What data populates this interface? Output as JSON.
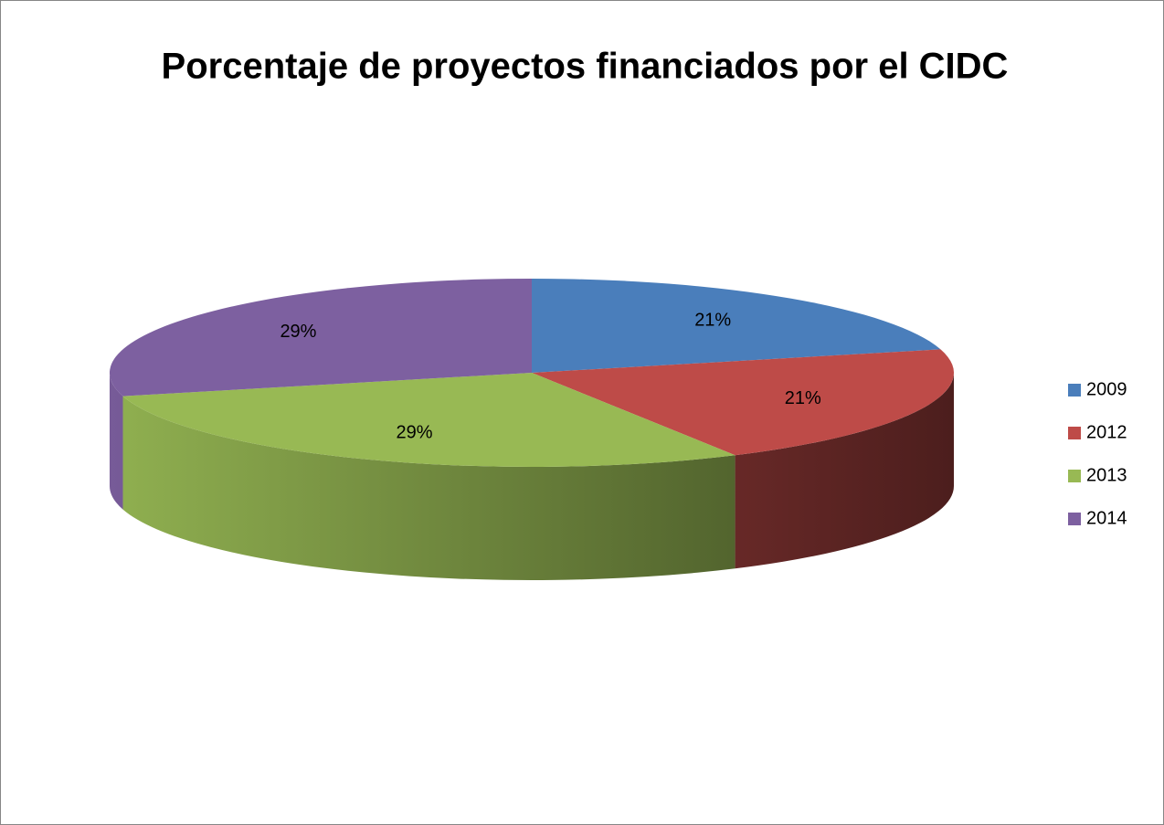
{
  "chart_data": {
    "type": "pie",
    "title": "Porcentaje de proyectos financiados por el CIDC",
    "categories": [
      "2009",
      "2012",
      "2013",
      "2014"
    ],
    "values": [
      21,
      21,
      29,
      29
    ],
    "value_labels": [
      "21%",
      "21%",
      "29%",
      "29%"
    ],
    "colors": [
      "#4a7ebb",
      "#be4b48",
      "#98b954",
      "#7d60a0"
    ],
    "legend": "right"
  }
}
